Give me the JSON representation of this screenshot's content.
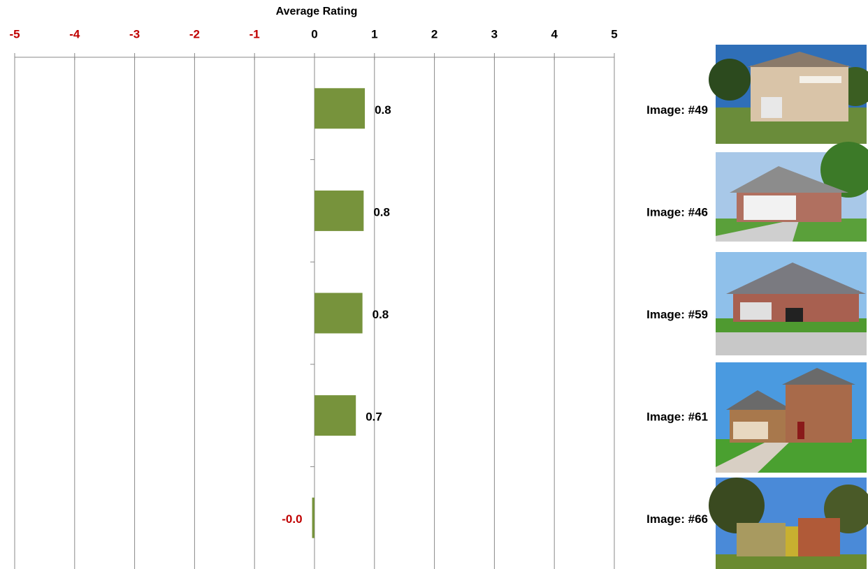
{
  "chart_data": {
    "type": "bar",
    "orientation": "horizontal",
    "title": "Average Rating",
    "categories": [
      "Image: #49",
      "Image: #46",
      "Image: #59",
      "Image: #61",
      "Image: #66"
    ],
    "values": [
      0.84,
      0.82,
      0.8,
      0.69,
      -0.04
    ],
    "value_labels": [
      "0.8",
      "0.8",
      "0.8",
      "0.7",
      "-0.0"
    ],
    "color": "#77933c",
    "negative_color": "#c00000",
    "xlim": [
      -5,
      5
    ],
    "xticks": [
      -5,
      -4,
      -3,
      -2,
      -1,
      0,
      1,
      2,
      3,
      4,
      5
    ],
    "grid": true
  }
}
